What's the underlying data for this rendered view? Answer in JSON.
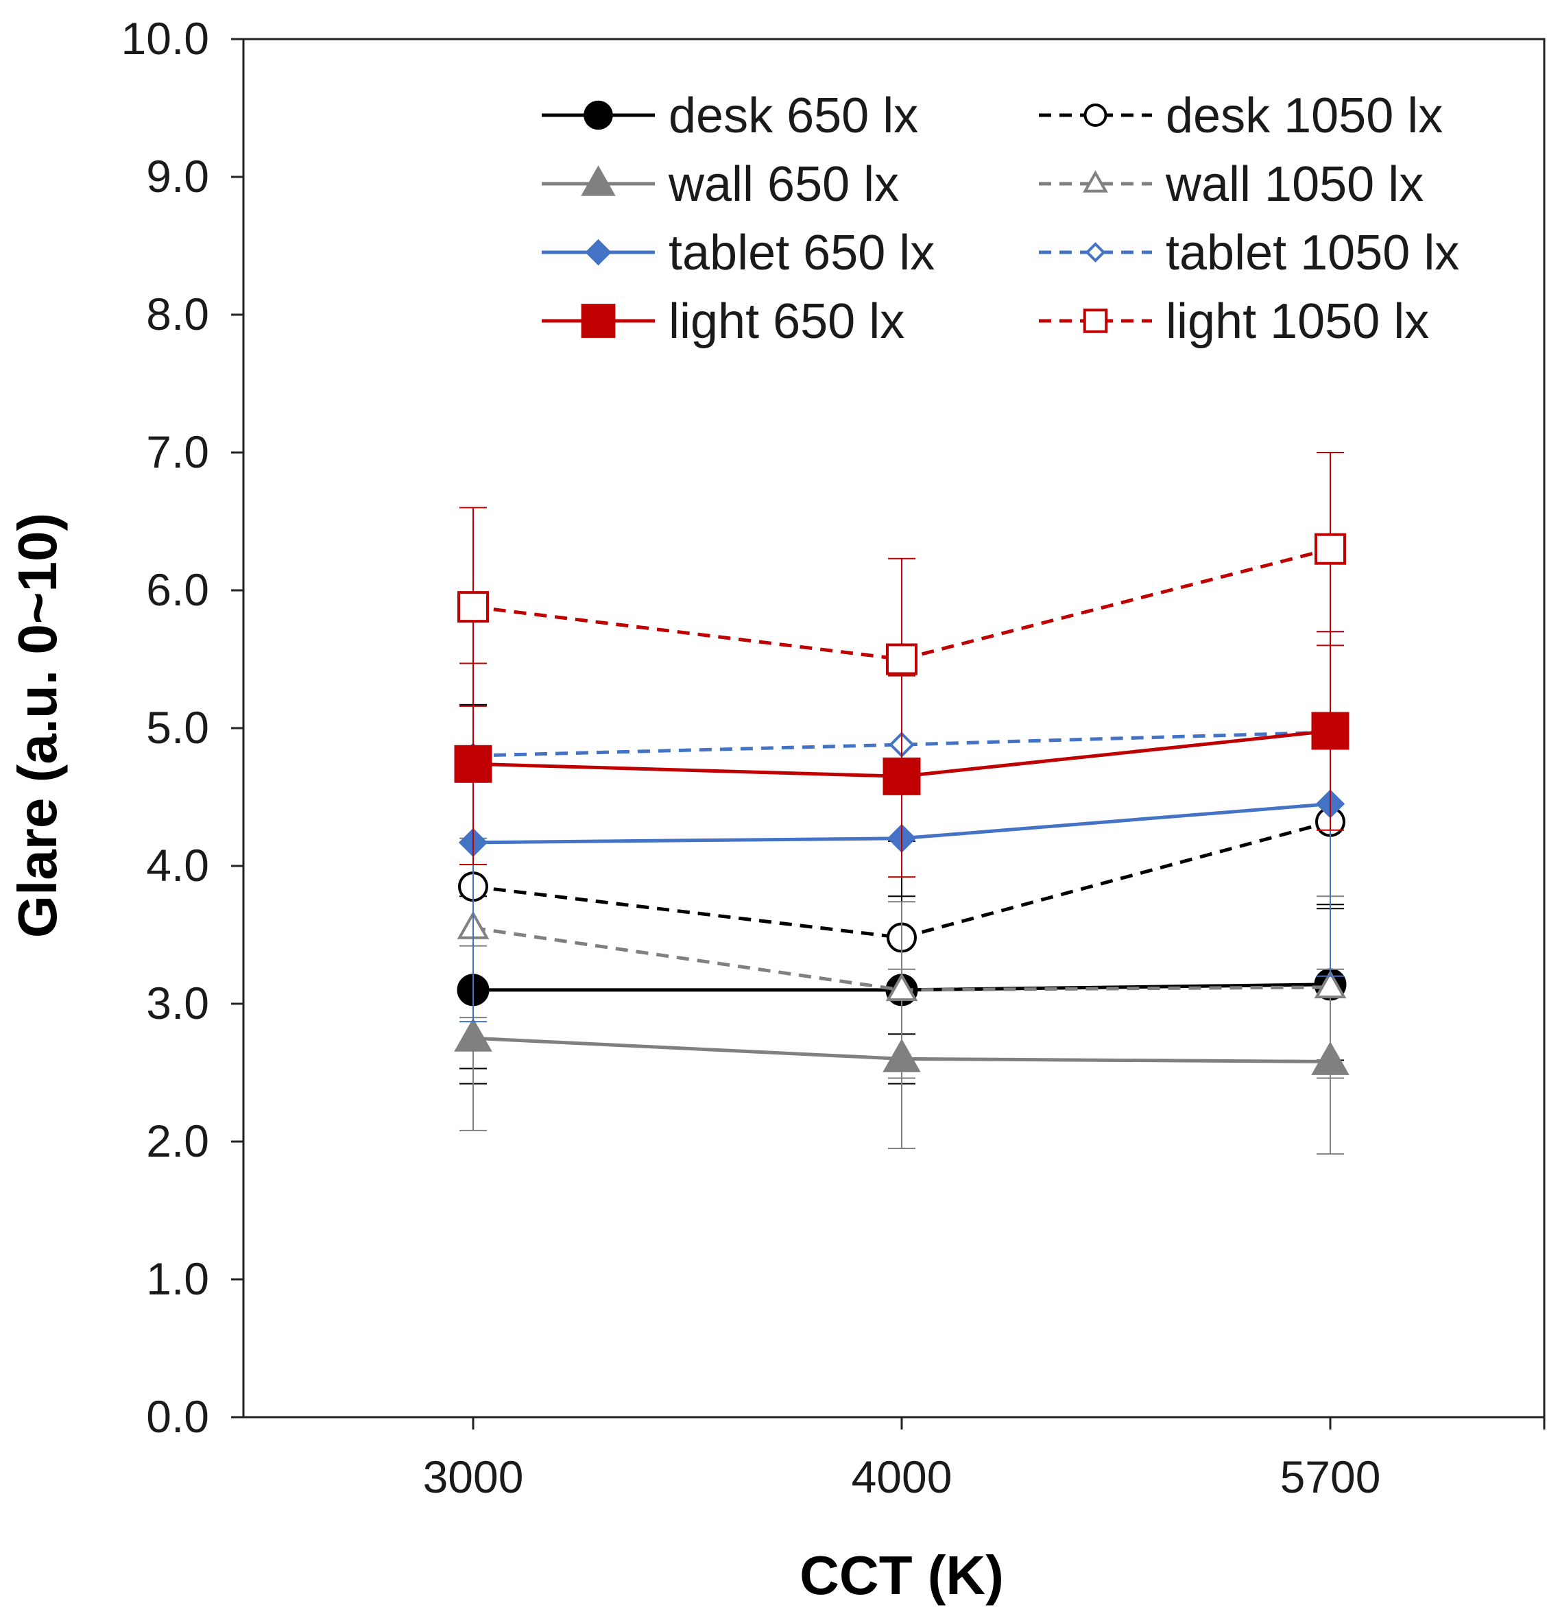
{
  "chart_data": {
    "type": "line",
    "title": "",
    "xlabel": "CCT (K)",
    "ylabel": "Glare (a.u. 0~10)",
    "categories": [
      "3000",
      "4000",
      "5700"
    ],
    "ylim": [
      0,
      10
    ],
    "yticks": [
      "0.0",
      "1.0",
      "2.0",
      "3.0",
      "4.0",
      "5.0",
      "6.0",
      "7.0",
      "8.0",
      "9.0",
      "10.0"
    ],
    "grid": false,
    "legend": "top-right, two columns",
    "series": [
      {
        "name": "desk 650 lx",
        "color": "#000000",
        "dash": "solid",
        "marker": "circle",
        "filled": true,
        "values": [
          3.1,
          3.1,
          3.14
        ],
        "errors": [
          0.68,
          0.68,
          0.55
        ]
      },
      {
        "name": "desk 1050 lx",
        "color": "#000000",
        "dash": "dashed",
        "marker": "circle",
        "filled": false,
        "values": [
          3.85,
          3.48,
          4.32
        ],
        "errors": [
          1.32,
          0.7,
          0.6
        ]
      },
      {
        "name": "wall 650 lx",
        "color": "#808080",
        "dash": "solid",
        "marker": "triangle",
        "filled": true,
        "values": [
          2.75,
          2.6,
          2.58
        ],
        "errors": [
          0.67,
          0.65,
          0.67
        ]
      },
      {
        "name": "wall 1050 lx",
        "color": "#808080",
        "dash": "dashed",
        "marker": "triangle",
        "filled": false,
        "values": [
          3.55,
          3.1,
          3.12
        ],
        "errors": [
          0.65,
          0.64,
          0.66
        ]
      },
      {
        "name": "tablet 650 lx",
        "color": "#4472C4",
        "dash": "solid",
        "marker": "diamond",
        "filled": true,
        "values": [
          4.17,
          4.2,
          4.45
        ],
        "errors": [
          1.3,
          0.0,
          1.25
        ]
      },
      {
        "name": "tablet 1050 lx",
        "color": "#4472C4",
        "dash": "dashed",
        "marker": "diamond",
        "filled": false,
        "values": [
          4.8,
          4.88,
          4.97
        ],
        "errors": [
          0.0,
          0.0,
          0.0
        ]
      },
      {
        "name": "light 650 lx",
        "color": "#C00000",
        "dash": "solid",
        "marker": "square",
        "filled": true,
        "values": [
          4.74,
          4.65,
          4.98
        ],
        "errors": [
          0.73,
          0.73,
          0.72
        ]
      },
      {
        "name": "light 1050 lx",
        "color": "#C00000",
        "dash": "dashed",
        "marker": "square",
        "filled": false,
        "values": [
          5.88,
          5.5,
          6.3
        ],
        "errors": [
          0.72,
          0.73,
          0.7
        ]
      }
    ]
  }
}
